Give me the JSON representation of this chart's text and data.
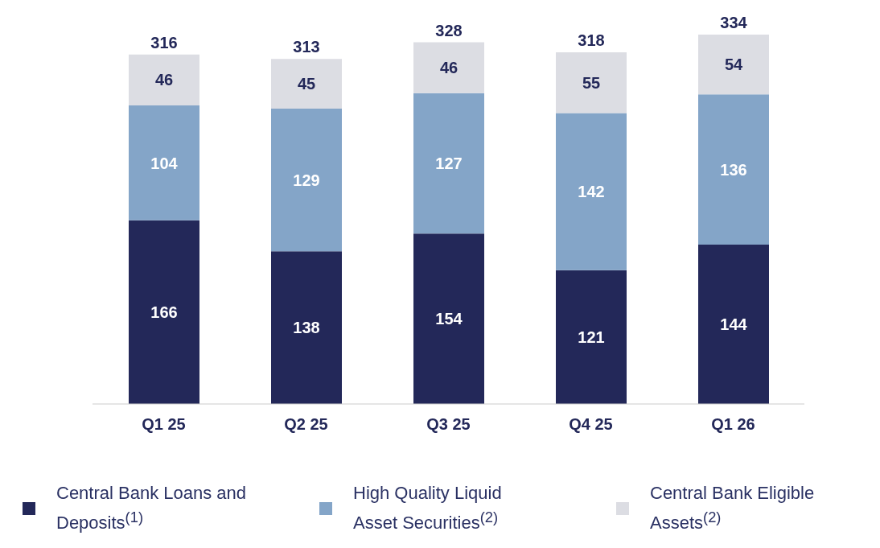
{
  "chart_data": {
    "type": "bar",
    "stacked": true,
    "data_labels": true,
    "legend": "bottom",
    "categories": [
      "Q1 25",
      "Q2 25",
      "Q3 25",
      "Q4 25",
      "Q1 26"
    ],
    "series": [
      {
        "name": "Central Bank Loans and Deposits$^{(1)}$",
        "color": "#232859",
        "values": [
          166,
          138,
          154,
          121,
          144
        ]
      },
      {
        "name": "High Quality Liquid Asset Securities$^{(2)}$",
        "color": "#84a5c8",
        "values": [
          104,
          129,
          127,
          142,
          136
        ]
      },
      {
        "name": "Central Bank Eligible Assets$^{(2)}$",
        "color": "#dcdde3",
        "values": [
          46,
          45,
          46,
          55,
          54
        ]
      }
    ],
    "totals": [
      "316",
      "313",
      "328",
      "318",
      "334"
    ]
  }
}
